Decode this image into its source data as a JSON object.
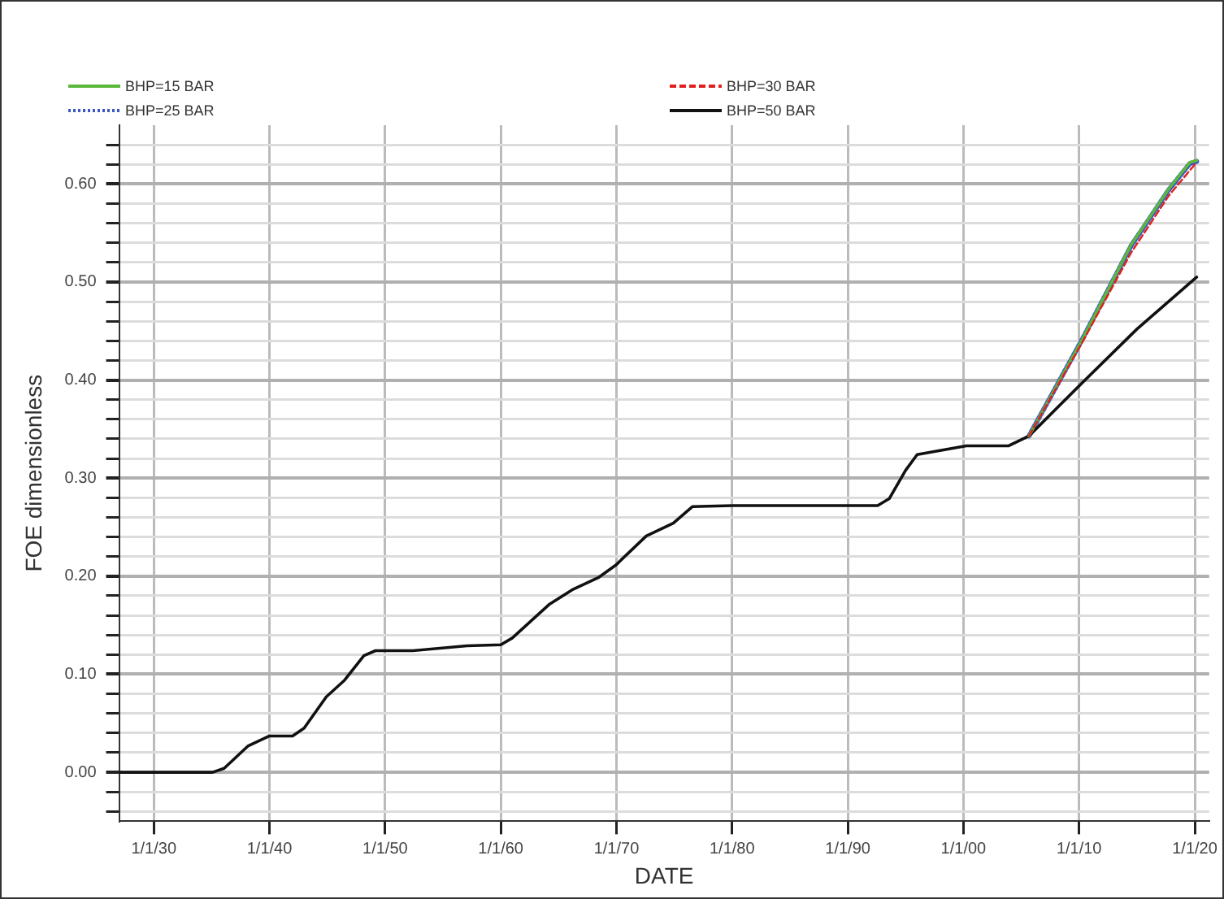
{
  "chart_data": {
    "type": "line",
    "xlabel": "DATE",
    "ylabel": "FOE dimensionless",
    "legend": "top",
    "grid": true,
    "marker": "none",
    "xlim": [
      "1927-01",
      "2021-04"
    ],
    "xticks": [
      {
        "value": "1930-01-01",
        "label": "1/1/30"
      },
      {
        "value": "1940-01-01",
        "label": "1/1/40"
      },
      {
        "value": "1950-01-01",
        "label": "1/1/50"
      },
      {
        "value": "1960-01-01",
        "label": "1/1/60"
      },
      {
        "value": "1970-01-01",
        "label": "1/1/70"
      },
      {
        "value": "1980-01-01",
        "label": "1/1/80"
      },
      {
        "value": "1990-01-01",
        "label": "1/1/90"
      },
      {
        "value": "2000-01-01",
        "label": "1/1/00"
      },
      {
        "value": "2010-01-01",
        "label": "1/1/10"
      },
      {
        "value": "2020-01-01",
        "label": "1/1/20"
      }
    ],
    "ylim": [
      -0.05,
      0.66
    ],
    "yticks": [
      {
        "value": -0.04,
        "label": null
      },
      {
        "value": -0.02,
        "label": null
      },
      {
        "value": 0,
        "label": "0.00"
      },
      {
        "value": 0.02,
        "label": null
      },
      {
        "value": 0.04,
        "label": null
      },
      {
        "value": 0.06,
        "label": null
      },
      {
        "value": 0.08,
        "label": null
      },
      {
        "value": 0.1,
        "label": "0.10"
      },
      {
        "value": 0.12,
        "label": null
      },
      {
        "value": 0.14,
        "label": null
      },
      {
        "value": 0.16,
        "label": null
      },
      {
        "value": 0.18,
        "label": null
      },
      {
        "value": 0.2,
        "label": "0.20"
      },
      {
        "value": 0.22,
        "label": null
      },
      {
        "value": 0.24,
        "label": null
      },
      {
        "value": 0.26,
        "label": null
      },
      {
        "value": 0.28,
        "label": null
      },
      {
        "value": 0.3,
        "label": "0.30"
      },
      {
        "value": 0.32,
        "label": null
      },
      {
        "value": 0.34,
        "label": null
      },
      {
        "value": 0.36,
        "label": null
      },
      {
        "value": 0.38,
        "label": null
      },
      {
        "value": 0.4,
        "label": "0.40"
      },
      {
        "value": 0.42,
        "label": null
      },
      {
        "value": 0.44,
        "label": null
      },
      {
        "value": 0.46,
        "label": null
      },
      {
        "value": 0.48,
        "label": null
      },
      {
        "value": 0.5,
        "label": "0.50"
      },
      {
        "value": 0.52,
        "label": null
      },
      {
        "value": 0.54,
        "label": null
      },
      {
        "value": 0.56,
        "label": null
      },
      {
        "value": 0.58,
        "label": null
      },
      {
        "value": 0.6,
        "label": "0.60"
      },
      {
        "value": 0.62,
        "label": null
      },
      {
        "value": 0.64,
        "label": null
      }
    ],
    "series": [
      {
        "name": "BHP=15 BAR",
        "color": "#5cb83c",
        "line_style": "solid",
        "x": [
          "2005-09",
          "2010-04",
          "2014-07",
          "2017-10",
          "2019-08",
          "2020-03"
        ],
        "values": [
          0.343,
          0.441,
          0.538,
          0.595,
          0.622,
          0.624
        ]
      },
      {
        "name": "BHP=25 BAR",
        "color": "#3a55c8",
        "line_style": "dotted",
        "x": [
          "2005-09",
          "2010-04",
          "2014-07",
          "2017-10",
          "2019-08",
          "2020-03"
        ],
        "values": [
          0.343,
          0.441,
          0.537,
          0.594,
          0.621,
          0.623
        ]
      },
      {
        "name": "BHP=30 BAR",
        "color": "#e02020",
        "line_style": "dashed",
        "x": [
          "2005-09",
          "2010-04",
          "2014-07",
          "2017-10",
          "2019-08",
          "2020-03"
        ],
        "values": [
          0.343,
          0.438,
          0.53,
          0.588,
          0.614,
          0.622
        ]
      },
      {
        "name": "BHP=50 BAR",
        "color": "#111111",
        "line_style": "solid",
        "x": [
          "1927-01",
          "1935-02",
          "1936-02",
          "1938-03",
          "1940-01",
          "1942-01",
          "1943-01",
          "1944-12",
          "1946-07",
          "1948-03",
          "1949-03",
          "1952-05",
          "1957-02",
          "1960-01",
          "1961-01",
          "1964-03",
          "1966-03",
          "1968-07",
          "1969-12",
          "1972-08",
          "1974-12",
          "1976-08",
          "1980-02",
          "1992-08",
          "1993-08",
          "1995-01",
          "1996-01",
          "2000-04",
          "2003-12",
          "2005-09",
          "2010-04",
          "2015-01",
          "2020-03"
        ],
        "values": [
          0,
          0,
          0.004,
          0.027,
          0.037,
          0.037,
          0.045,
          0.077,
          0.094,
          0.119,
          0.124,
          0.124,
          0.129,
          0.13,
          0.137,
          0.171,
          0.186,
          0.199,
          0.211,
          0.241,
          0.254,
          0.271,
          0.272,
          0.272,
          0.279,
          0.308,
          0.324,
          0.333,
          0.333,
          0.343,
          0.397,
          0.452,
          0.505
        ]
      }
    ]
  }
}
